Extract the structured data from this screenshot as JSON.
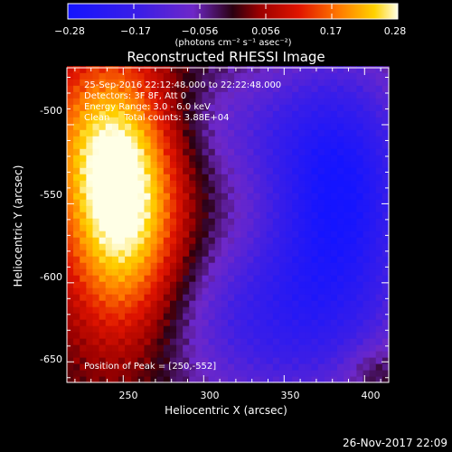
{
  "chart_data": {
    "type": "heatmap",
    "title": "Reconstructed RHESSI Image",
    "xlabel": "Heliocentric X (arcsec)",
    "ylabel": "Heliocentric Y (arcsec)",
    "xlim": [
      215,
      415
    ],
    "ylim": [
      -663,
      -464
    ],
    "x_ticks": [
      "250",
      "300",
      "350",
      "400"
    ],
    "y_ticks": [
      "-500",
      "-550",
      "-600",
      "-650"
    ],
    "colorbar": {
      "label": "(photons cm⁻² s⁻¹ asec⁻²)",
      "min": -0.28,
      "max": 0.28,
      "tick_labels": [
        "−0.28",
        "−0.17",
        "−0.056",
        "0.056",
        "0.17",
        "0.28"
      ]
    },
    "annotations": [
      "25-Sep-2016 22:12:48.000 to 22:22:48.000",
      "Detectors: 3F 8F, Att 0",
      "Energy Range: 3.0 - 6.0 keV",
      "Clean     Total counts: 3.88E+04"
    ],
    "peak_label": "Position of Peak = [250,-552]",
    "peak": [
      250,
      -552
    ],
    "footer_date": "26-Nov-2017 22:09"
  }
}
